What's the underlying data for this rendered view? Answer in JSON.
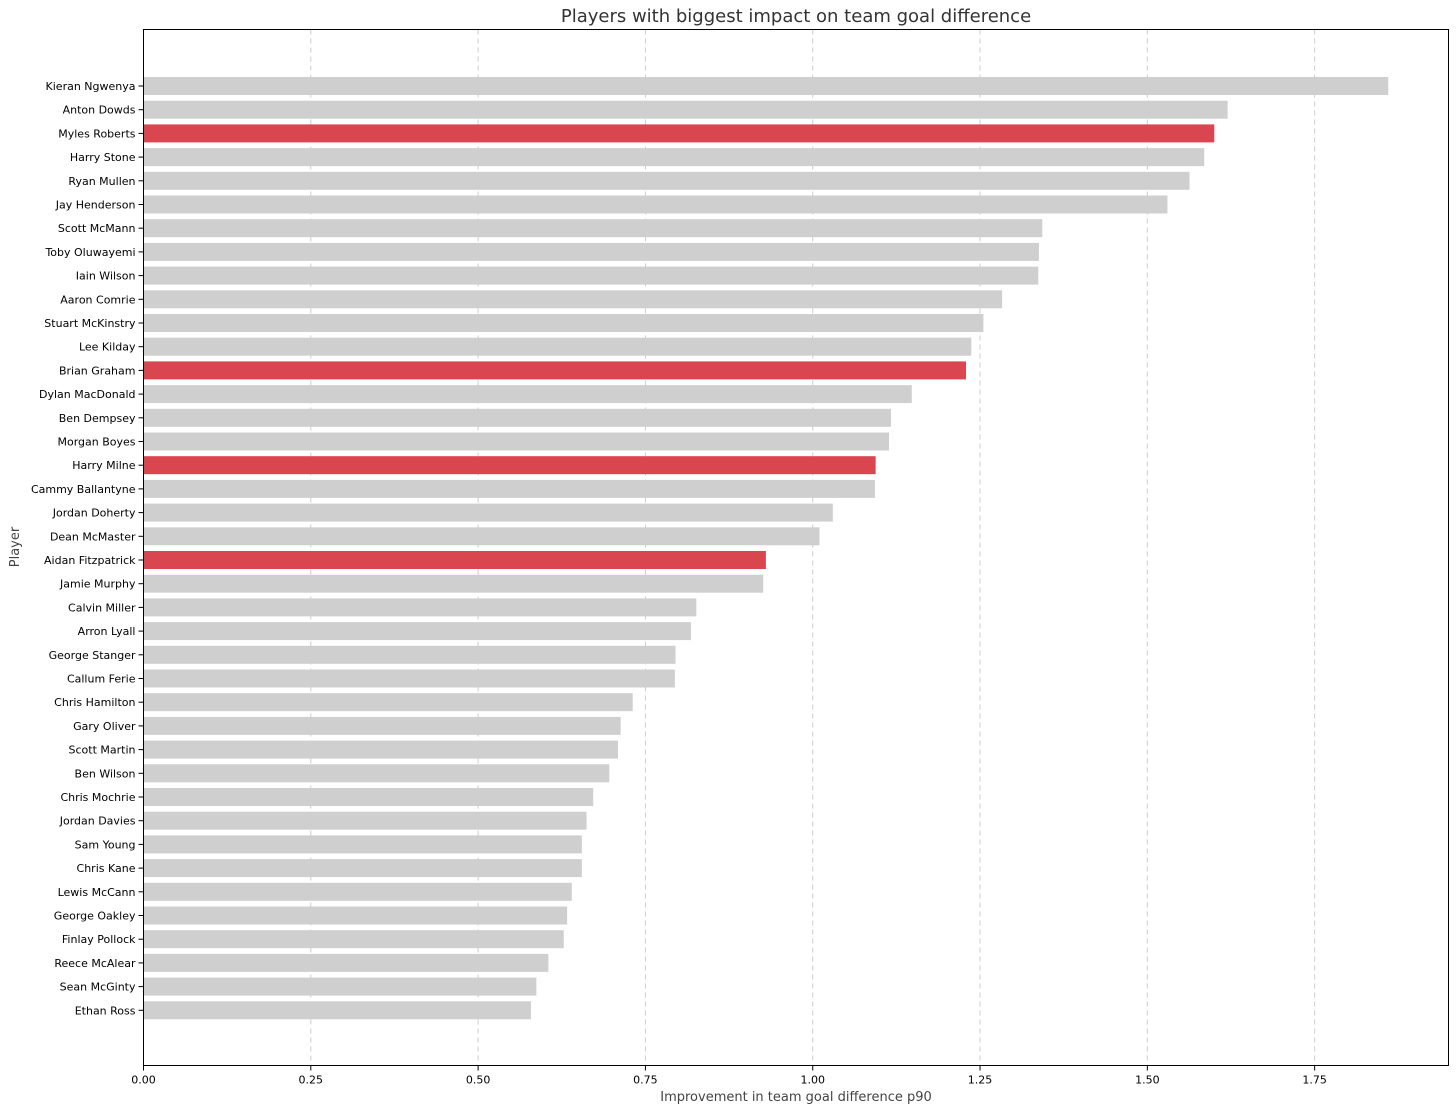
{
  "chart_data": {
    "type": "bar",
    "orientation": "horizontal",
    "title": "Players with biggest impact on team goal difference",
    "xlabel": "Improvement in team goal difference p90",
    "ylabel": "Player",
    "xlim": [
      0,
      1.95
    ],
    "xticks": [
      0,
      0.25,
      0.5,
      0.75,
      1.0,
      1.25,
      1.5,
      1.75
    ],
    "xtick_labels": [
      "0.00",
      "0.25",
      "0.50",
      "0.75",
      "1.00",
      "1.25",
      "1.50",
      "1.75"
    ],
    "grid": "x-dashed",
    "colors": {
      "default": "#cfcfcf",
      "highlight": "#d9464f"
    },
    "categories": [
      "Kieran Ngwenya",
      "Anton Dowds",
      "Myles Roberts",
      "Harry Stone",
      "Ryan Mullen",
      "Jay Henderson",
      "Scott McMann",
      "Toby Oluwayemi",
      "Iain Wilson",
      "Aaron Comrie",
      "Stuart McKinstry",
      "Lee Kilday",
      "Brian Graham",
      "Dylan MacDonald",
      "Ben Dempsey",
      "Morgan Boyes",
      "Harry Milne",
      "Cammy Ballantyne",
      "Jordan Doherty",
      "Dean McMaster",
      "Aidan Fitzpatrick",
      "Jamie Murphy",
      "Calvin Miller",
      "Arron Lyall",
      "George Stanger",
      "Callum Ferie",
      "Chris Hamilton",
      "Gary Oliver",
      "Scott Martin",
      "Ben Wilson",
      "Chris Mochrie",
      "Jordan Davies",
      "Sam Young",
      "Chris Kane",
      "Lewis McCann",
      "George Oakley",
      "Finlay Pollock",
      "Reece McAlear",
      "Sean McGinty",
      "Ethan Ross"
    ],
    "values": [
      1.86,
      1.62,
      1.6,
      1.585,
      1.563,
      1.53,
      1.343,
      1.338,
      1.337,
      1.283,
      1.255,
      1.237,
      1.229,
      1.148,
      1.117,
      1.114,
      1.094,
      1.093,
      1.03,
      1.01,
      0.93,
      0.926,
      0.826,
      0.818,
      0.795,
      0.794,
      0.731,
      0.713,
      0.709,
      0.696,
      0.672,
      0.662,
      0.655,
      0.655,
      0.64,
      0.633,
      0.628,
      0.605,
      0.587,
      0.579
    ],
    "highlighted": [
      "Myles Roberts",
      "Brian Graham",
      "Harry Milne",
      "Aidan Fitzpatrick"
    ]
  }
}
